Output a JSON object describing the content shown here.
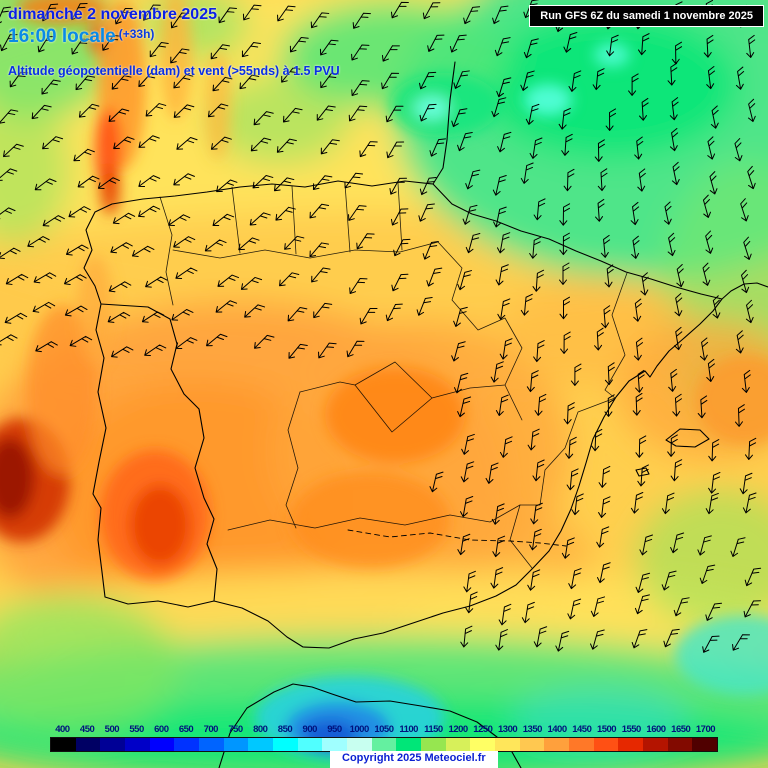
{
  "header": {
    "date": "dimanche 2 novembre 2025",
    "time": "16:00 locale",
    "offset": "(+33h)",
    "subtitle": "Altitude géopotentielle (dam) et vent (>55nds) à 1.5 PVU"
  },
  "run_box": {
    "label": "Run GFS 6Z du samedi 1 novembre 2025"
  },
  "legend": {
    "scale_min": 400,
    "scale_max": 1700,
    "scale_step": 50,
    "values": [
      "400",
      "450",
      "500",
      "550",
      "600",
      "650",
      "700",
      "750",
      "800",
      "850",
      "900",
      "950",
      "1000",
      "1050",
      "1100",
      "1150",
      "1200",
      "1250",
      "1300",
      "1350",
      "1400",
      "1450",
      "1500",
      "1550",
      "1600",
      "1650",
      "1700"
    ],
    "colors": [
      "#000000",
      "#000064",
      "#000096",
      "#0000c8",
      "#0000ff",
      "#0032ff",
      "#0064ff",
      "#0096ff",
      "#00c8ff",
      "#00ffff",
      "#50ffff",
      "#a0ffff",
      "#c8fff0",
      "#64f0a0",
      "#00e678",
      "#96e650",
      "#d7f05a",
      "#ffff64",
      "#ffe65a",
      "#ffc850",
      "#ffa03c",
      "#ff7828",
      "#ff5014",
      "#e62800",
      "#b41400",
      "#820a00",
      "#500000"
    ]
  },
  "footer": {
    "copyright": "Copyright 2025 Meteociel.fr"
  },
  "map": {
    "base_color": "#ffcf4e",
    "barb_icon": "wind-barb-arrow",
    "barb_color": "#000000",
    "border_color": "#000000"
  },
  "colors": {
    "date_text": "#0a1fe6",
    "time_text": "#0a8ae6",
    "subtitle_text": "#0a2fe6",
    "legend_text": "#00127d",
    "copyright_text": "#0a1fd2",
    "run_box_bg": "#000000",
    "run_box_text": "#ffffff"
  }
}
